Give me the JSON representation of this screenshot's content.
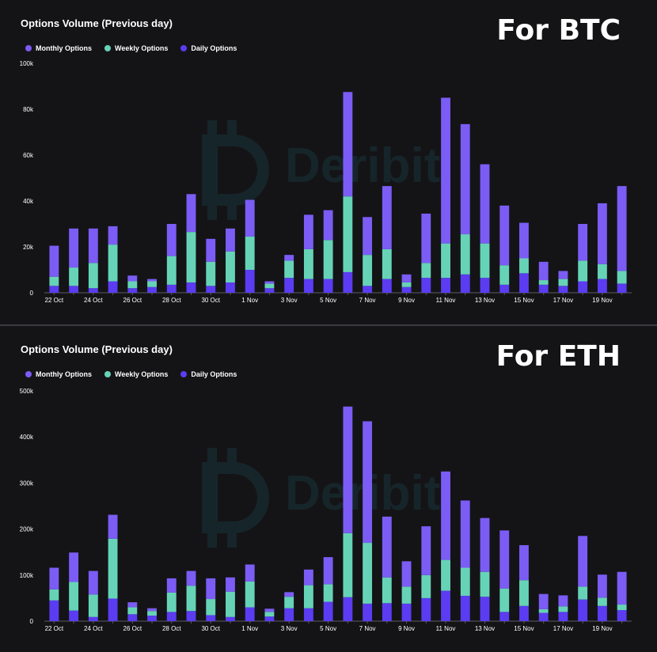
{
  "panels": {
    "btc": {
      "title": "Options Volume (Previous day)",
      "label": "For BTC"
    },
    "eth": {
      "title": "Options Volume (Previous day)",
      "label": "For ETH"
    }
  },
  "legend": [
    {
      "name": "Monthly Options",
      "color": "#7b5cf5"
    },
    {
      "name": "Weekly Options",
      "color": "#66d3b7"
    },
    {
      "name": "Daily Options",
      "color": "#5b3cf2"
    }
  ],
  "colors": {
    "background": "#141416",
    "axis": "#5a5a62",
    "tick_text": "#ffffff"
  },
  "watermark": "Deribit",
  "chart_data": [
    {
      "type": "bar",
      "stacked": true,
      "title": "Options Volume (Previous day)",
      "ylim": [
        0,
        100000
      ],
      "yticks": [
        0,
        20000,
        40000,
        60000,
        80000,
        100000
      ],
      "ytick_labels": [
        "0",
        "20k",
        "40k",
        "60k",
        "80k",
        "100k"
      ],
      "categories": [
        "22 Oct",
        "23 Oct",
        "24 Oct",
        "25 Oct",
        "26 Oct",
        "27 Oct",
        "28 Oct",
        "29 Oct",
        "30 Oct",
        "31 Oct",
        "1 Nov",
        "2 Nov",
        "3 Nov",
        "4 Nov",
        "5 Nov",
        "6 Nov",
        "7 Nov",
        "8 Nov",
        "9 Nov",
        "10 Nov",
        "11 Nov",
        "12 Nov",
        "13 Nov",
        "14 Nov",
        "15 Nov",
        "16 Nov",
        "17 Nov",
        "18 Nov",
        "19 Nov",
        "20 Nov"
      ],
      "xtick_labels": [
        "22 Oct",
        "",
        "24 Oct",
        "",
        "26 Oct",
        "",
        "28 Oct",
        "",
        "30 Oct",
        "",
        "1 Nov",
        "",
        "3 Nov",
        "",
        "5 Nov",
        "",
        "7 Nov",
        "",
        "9 Nov",
        "",
        "11 Nov",
        "",
        "13 Nov",
        "",
        "15 Nov",
        "",
        "17 Nov",
        "",
        "19 Nov",
        ""
      ],
      "series": [
        {
          "name": "Daily Options",
          "values": [
            3000,
            3000,
            2000,
            5000,
            2000,
            2500,
            3500,
            4500,
            3000,
            4500,
            10000,
            2000,
            6500,
            6000,
            6000,
            9000,
            3000,
            6000,
            2500,
            6500,
            6500,
            8000,
            6500,
            3500,
            8500,
            3500,
            3000,
            5000,
            6000,
            4000
          ]
        },
        {
          "name": "Weekly Options",
          "values": [
            4000,
            8000,
            11000,
            16000,
            3000,
            2500,
            12500,
            22000,
            10500,
            13500,
            14500,
            2000,
            7500,
            13000,
            17000,
            33000,
            13500,
            13000,
            2000,
            6500,
            15000,
            17500,
            15000,
            8500,
            6500,
            2000,
            3000,
            9000,
            6500,
            5500
          ]
        },
        {
          "name": "Monthly Options",
          "values": [
            13500,
            17000,
            15000,
            8000,
            2500,
            1000,
            14000,
            16500,
            10000,
            10000,
            16000,
            1000,
            2500,
            15000,
            13000,
            45500,
            16500,
            27500,
            3500,
            21500,
            63500,
            48000,
            34500,
            26000,
            15500,
            8000,
            3500,
            16000,
            26500,
            37000
          ]
        }
      ]
    },
    {
      "type": "bar",
      "stacked": true,
      "title": "Options Volume (Previous day)",
      "ylim": [
        0,
        500000
      ],
      "yticks": [
        0,
        100000,
        200000,
        300000,
        400000,
        500000
      ],
      "ytick_labels": [
        "0",
        "100k",
        "200k",
        "300k",
        "400k",
        "500k"
      ],
      "categories": [
        "22 Oct",
        "23 Oct",
        "24 Oct",
        "25 Oct",
        "26 Oct",
        "27 Oct",
        "28 Oct",
        "29 Oct",
        "30 Oct",
        "31 Oct",
        "1 Nov",
        "2 Nov",
        "3 Nov",
        "4 Nov",
        "5 Nov",
        "6 Nov",
        "7 Nov",
        "8 Nov",
        "9 Nov",
        "10 Nov",
        "11 Nov",
        "12 Nov",
        "13 Nov",
        "14 Nov",
        "15 Nov",
        "16 Nov",
        "17 Nov",
        "18 Nov",
        "19 Nov",
        "20 Nov"
      ],
      "xtick_labels": [
        "22 Oct",
        "",
        "24 Oct",
        "",
        "26 Oct",
        "",
        "28 Oct",
        "",
        "30 Oct",
        "",
        "1 Nov",
        "",
        "3 Nov",
        "",
        "5 Nov",
        "",
        "7 Nov",
        "",
        "9 Nov",
        "",
        "11 Nov",
        "",
        "13 Nov",
        "",
        "15 Nov",
        "",
        "17 Nov",
        "",
        "19 Nov",
        ""
      ],
      "series": [
        {
          "name": "Daily Options",
          "values": [
            45000,
            23000,
            9000,
            49000,
            15000,
            12000,
            20000,
            22000,
            13000,
            9000,
            30000,
            10000,
            28000,
            28000,
            42000,
            52000,
            38000,
            39000,
            38000,
            50000,
            66000,
            55000,
            53000,
            20000,
            33000,
            18000,
            20000,
            47000,
            33000,
            24000
          ]
        },
        {
          "name": "Weekly Options",
          "values": [
            24000,
            62000,
            49000,
            130000,
            15000,
            10000,
            42000,
            55000,
            35000,
            55000,
            56000,
            10000,
            25000,
            50000,
            38000,
            139000,
            132000,
            56000,
            37000,
            50000,
            67000,
            61000,
            54000,
            51000,
            56000,
            8000,
            12000,
            28000,
            18000,
            12000
          ]
        },
        {
          "name": "Monthly Options",
          "values": [
            47000,
            64000,
            51000,
            52000,
            11000,
            6000,
            31000,
            32000,
            45000,
            31000,
            37000,
            7000,
            10000,
            34000,
            59000,
            275000,
            264000,
            132000,
            55000,
            106000,
            192000,
            146000,
            117000,
            126000,
            76000,
            33000,
            24000,
            110000,
            50000,
            71000
          ]
        }
      ]
    }
  ]
}
